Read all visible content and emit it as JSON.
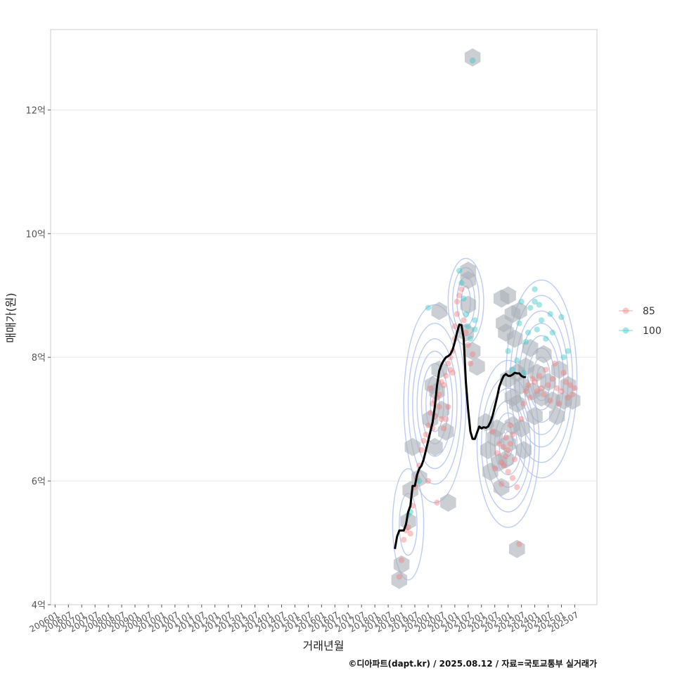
{
  "chart_data": {
    "type": "scatter",
    "xlabel": "거래년월",
    "ylabel": "매매가(원)",
    "caption": "©디아파트(dapt.kr) / 2025.08.12 / 자료=국토교통부 실거래가",
    "x_ticks": [
      "200601",
      "200607",
      "200701",
      "200707",
      "200801",
      "200807",
      "200901",
      "200907",
      "201001",
      "201007",
      "201101",
      "201107",
      "201201",
      "201207",
      "201301",
      "201307",
      "201401",
      "201407",
      "201501",
      "201507",
      "201601",
      "201607",
      "201701",
      "201707",
      "201801",
      "201807",
      "201901",
      "201907",
      "202001",
      "202007",
      "202101",
      "202107",
      "202201",
      "202207",
      "202301",
      "202307",
      "202401",
      "202407",
      "202501",
      "202507"
    ],
    "y_ticks": [
      {
        "value": 4,
        "label": "4억"
      },
      {
        "value": 6,
        "label": "6억"
      },
      {
        "value": 8,
        "label": "8억"
      },
      {
        "value": 10,
        "label": "10억"
      },
      {
        "value": 12,
        "label": "12억"
      }
    ],
    "ylim": [
      4,
      13.3
    ],
    "xlim": [
      "200511",
      "202605"
    ],
    "grid": true,
    "legend_position": "right",
    "colors": {
      "85": "#F08080",
      "100": "#3CC8C8",
      "trend": "#000000",
      "hex": "#A9AFB5",
      "contour": "#AABBEE"
    },
    "series": [
      {
        "name": "85",
        "points": [
          [
            "201812",
            4.45
          ],
          [
            "201901",
            4.72
          ],
          [
            "201902",
            5.05
          ],
          [
            "201903",
            5.2
          ],
          [
            "201904",
            5.25
          ],
          [
            "201905",
            5.15
          ],
          [
            "201906",
            5.6
          ],
          [
            "201907",
            5.9
          ],
          [
            "201908",
            6.05
          ],
          [
            "201909",
            6.25
          ],
          [
            "201910",
            6.5
          ],
          [
            "201911",
            6.65
          ],
          [
            "201912",
            6.75
          ],
          [
            "202001",
            6.0
          ],
          [
            "202001",
            6.9
          ],
          [
            "202002",
            7.1
          ],
          [
            "202002",
            7.5
          ],
          [
            "202003",
            7.25
          ],
          [
            "202003",
            6.85
          ],
          [
            "202004",
            7.3
          ],
          [
            "202004",
            7.05
          ],
          [
            "202005",
            7.35
          ],
          [
            "202005",
            5.65
          ],
          [
            "202006",
            7.4
          ],
          [
            "202006",
            7.2
          ],
          [
            "202007",
            7.0
          ],
          [
            "202007",
            7.6
          ],
          [
            "202008",
            7.55
          ],
          [
            "202008",
            6.85
          ],
          [
            "202009",
            7.7
          ],
          [
            "202009",
            7.0
          ],
          [
            "202010",
            7.9
          ],
          [
            "202010",
            7.2
          ],
          [
            "202011",
            7.8
          ],
          [
            "202011",
            8.0
          ],
          [
            "202012",
            8.1
          ],
          [
            "202012",
            7.75
          ],
          [
            "202101",
            8.3
          ],
          [
            "202101",
            8.5
          ],
          [
            "202102",
            8.7
          ],
          [
            "202102",
            8.9
          ],
          [
            "202103",
            9.0
          ],
          [
            "202104",
            9.1
          ],
          [
            "202105",
            8.6
          ],
          [
            "202106",
            8.4
          ],
          [
            "202107",
            8.2
          ],
          [
            "202108",
            7.9
          ],
          [
            "202109",
            8.05
          ],
          [
            "202206",
            6.8
          ],
          [
            "202207",
            6.2
          ],
          [
            "202208",
            6.45
          ],
          [
            "202209",
            6.6
          ],
          [
            "202210",
            6.3
          ],
          [
            "202210",
            5.95
          ],
          [
            "202211",
            6.55
          ],
          [
            "202211",
            6.25
          ],
          [
            "202212",
            6.7
          ],
          [
            "202212",
            6.4
          ],
          [
            "202301",
            6.5
          ],
          [
            "202301",
            6.15
          ],
          [
            "202302",
            6.9
          ],
          [
            "202302",
            6.6
          ],
          [
            "202303",
            6.05
          ],
          [
            "202303",
            6.75
          ],
          [
            "202304",
            6.35
          ],
          [
            "202305",
            5.9
          ],
          [
            "202306",
            4.98
          ],
          [
            "202307",
            7.0
          ],
          [
            "202308",
            7.25
          ],
          [
            "202309",
            7.45
          ],
          [
            "202310",
            7.55
          ],
          [
            "202311",
            7.35
          ],
          [
            "202312",
            7.65
          ],
          [
            "202401",
            7.6
          ],
          [
            "202402",
            7.45
          ],
          [
            "202403",
            7.7
          ],
          [
            "202404",
            7.5
          ],
          [
            "202405",
            7.4
          ],
          [
            "202406",
            7.8
          ],
          [
            "202407",
            7.55
          ],
          [
            "202408",
            7.3
          ],
          [
            "202409",
            7.65
          ],
          [
            "202410",
            7.9
          ],
          [
            "202411",
            7.5
          ],
          [
            "202412",
            7.25
          ],
          [
            "202501",
            7.45
          ],
          [
            "202502",
            7.75
          ],
          [
            "202503",
            7.6
          ],
          [
            "202504",
            7.35
          ],
          [
            "202505",
            7.55
          ],
          [
            "202506",
            7.4
          ],
          [
            "202507",
            7.5
          ]
        ]
      },
      {
        "name": "100",
        "points": [
          [
            "201904",
            5.45
          ],
          [
            "201905",
            5.5
          ],
          [
            "201909",
            6.0
          ],
          [
            "202001",
            8.8
          ],
          [
            "202103",
            9.4
          ],
          [
            "202104",
            9.2
          ],
          [
            "202105",
            8.95
          ],
          [
            "202106",
            8.7
          ],
          [
            "202107",
            8.5
          ],
          [
            "202108",
            8.3
          ],
          [
            "202109",
            12.8
          ],
          [
            "202110",
            8.6
          ],
          [
            "202110",
            8.45
          ],
          [
            "202301",
            8.1
          ],
          [
            "202303",
            7.8
          ],
          [
            "202305",
            7.95
          ],
          [
            "202306",
            8.55
          ],
          [
            "202307",
            8.9
          ],
          [
            "202308",
            7.75
          ],
          [
            "202309",
            8.25
          ],
          [
            "202310",
            8.4
          ],
          [
            "202311",
            8.8
          ],
          [
            "202401",
            9.1
          ],
          [
            "202401",
            8.9
          ],
          [
            "202402",
            8.45
          ],
          [
            "202403",
            8.85
          ],
          [
            "202404",
            8.6
          ],
          [
            "202406",
            8.3
          ],
          [
            "202408",
            8.7
          ],
          [
            "202409",
            8.4
          ],
          [
            "202501",
            8.65
          ],
          [
            "202502",
            8.0
          ],
          [
            "202504",
            8.1
          ]
        ]
      }
    ],
    "trend": [
      [
        "201810",
        4.9
      ],
      [
        "201811",
        5.1
      ],
      [
        "201812",
        5.2
      ],
      [
        "201901",
        5.2
      ],
      [
        "201902",
        5.2
      ],
      [
        "201903",
        5.3
      ],
      [
        "201904",
        5.5
      ],
      [
        "201905",
        5.6
      ],
      [
        "201906",
        5.92
      ],
      [
        "201907",
        5.92
      ],
      [
        "201908",
        6.1
      ],
      [
        "201909",
        6.2
      ],
      [
        "201910",
        6.25
      ],
      [
        "201911",
        6.35
      ],
      [
        "201912",
        6.5
      ],
      [
        "202001",
        6.65
      ],
      [
        "202002",
        6.8
      ],
      [
        "202003",
        6.95
      ],
      [
        "202004",
        7.2
      ],
      [
        "202005",
        7.55
      ],
      [
        "202006",
        7.78
      ],
      [
        "202007",
        7.88
      ],
      [
        "202008",
        7.95
      ],
      [
        "202009",
        8.0
      ],
      [
        "202010",
        8.02
      ],
      [
        "202011",
        8.05
      ],
      [
        "202012",
        8.12
      ],
      [
        "202101",
        8.25
      ],
      [
        "202102",
        8.4
      ],
      [
        "202103",
        8.53
      ],
      [
        "202104",
        8.52
      ],
      [
        "202105",
        8.3
      ],
      [
        "202106",
        7.6
      ],
      [
        "202107",
        7.15
      ],
      [
        "202108",
        6.8
      ],
      [
        "202109",
        6.68
      ],
      [
        "202110",
        6.68
      ],
      [
        "202111",
        6.78
      ],
      [
        "202112",
        6.88
      ],
      [
        "202201",
        6.85
      ],
      [
        "202202",
        6.87
      ],
      [
        "202203",
        6.86
      ],
      [
        "202204",
        6.88
      ],
      [
        "202205",
        6.95
      ],
      [
        "202206",
        7.05
      ],
      [
        "202207",
        7.2
      ],
      [
        "202208",
        7.35
      ],
      [
        "202209",
        7.52
      ],
      [
        "202210",
        7.62
      ],
      [
        "202211",
        7.7
      ],
      [
        "202212",
        7.73
      ],
      [
        "202301",
        7.7
      ],
      [
        "202302",
        7.7
      ],
      [
        "202303",
        7.72
      ],
      [
        "202304",
        7.75
      ],
      [
        "202305",
        7.74
      ],
      [
        "202306",
        7.74
      ],
      [
        "202307",
        7.7
      ],
      [
        "202308",
        7.68
      ],
      [
        "202309",
        7.68
      ]
    ],
    "hexbins": [
      [
        "201812",
        4.4
      ],
      [
        "201901",
        4.65
      ],
      [
        "201904",
        5.35
      ],
      [
        "201905",
        5.85
      ],
      [
        "201906",
        6.55
      ],
      [
        "201909",
        6.05
      ],
      [
        "202002",
        7.0
      ],
      [
        "202003",
        7.55
      ],
      [
        "202004",
        6.55
      ],
      [
        "202005",
        7.45
      ],
      [
        "202006",
        7.8
      ],
      [
        "202007",
        7.15
      ],
      [
        "202009",
        6.8
      ],
      [
        "202010",
        5.65
      ],
      [
        "202006",
        8.75
      ],
      [
        "202107",
        9.4
      ],
      [
        "202107",
        9.25
      ],
      [
        "202107",
        8.85
      ],
      [
        "202109",
        12.85
      ],
      [
        "202106",
        8.4
      ],
      [
        "202210",
        8.95
      ],
      [
        "202211",
        8.55
      ],
      [
        "202212",
        8.4
      ],
      [
        "202301",
        9.0
      ],
      [
        "202303",
        8.7
      ],
      [
        "202304",
        8.3
      ],
      [
        "202306",
        8.75
      ],
      [
        "202305",
        7.75
      ],
      [
        "202301",
        7.65
      ],
      [
        "202303",
        7.35
      ],
      [
        "202305",
        7.25
      ],
      [
        "202307",
        7.55
      ],
      [
        "202309",
        7.85
      ],
      [
        "202311",
        8.15
      ],
      [
        "202312",
        7.45
      ],
      [
        "202401",
        7.05
      ],
      [
        "202402",
        7.75
      ],
      [
        "202404",
        7.35
      ],
      [
        "202405",
        8.05
      ],
      [
        "202407",
        7.6
      ],
      [
        "202409",
        7.3
      ],
      [
        "202411",
        7.05
      ],
      [
        "202412",
        7.8
      ],
      [
        "202502",
        7.3
      ],
      [
        "202504",
        7.55
      ],
      [
        "202506",
        7.3
      ],
      [
        "202109",
        8.1
      ],
      [
        "202111",
        7.85
      ],
      [
        "202203",
        6.95
      ],
      [
        "202204",
        6.5
      ],
      [
        "202205",
        6.15
      ],
      [
        "202207",
        6.7
      ],
      [
        "202208",
        6.85
      ],
      [
        "202209",
        6.3
      ],
      [
        "202210",
        5.9
      ],
      [
        "202212",
        6.35
      ],
      [
        "202301",
        6.6
      ],
      [
        "202303",
        6.9
      ],
      [
        "202305",
        4.9
      ],
      [
        "202307",
        6.85
      ],
      [
        "202308",
        6.5
      ]
    ],
    "contours": [
      {
        "center": [
          "202004",
          7.25
        ],
        "rx": [
          2,
          4,
          6,
          8,
          10,
          12,
          14
        ],
        "ry": [
          0.25,
          0.45,
          0.65,
          0.85,
          1.05,
          1.3,
          1.6
        ]
      },
      {
        "center": [
          "202106",
          8.9
        ],
        "rx": [
          2,
          4,
          6,
          8
        ],
        "ry": [
          0.25,
          0.4,
          0.55,
          0.7
        ]
      },
      {
        "center": [
          "202301",
          6.6
        ],
        "rx": [
          2,
          4,
          6,
          8,
          10,
          12,
          14
        ],
        "ry": [
          0.2,
          0.35,
          0.5,
          0.7,
          0.9,
          1.1,
          1.35
        ]
      },
      {
        "center": [
          "202404",
          7.65
        ],
        "rx": [
          2,
          4,
          6,
          8,
          10,
          12,
          14,
          16
        ],
        "ry": [
          0.2,
          0.35,
          0.5,
          0.7,
          0.9,
          1.1,
          1.35,
          1.6
        ]
      },
      {
        "center": [
          "201904",
          5.3
        ],
        "rx": [
          4,
          7
        ],
        "ry": [
          0.5,
          0.9
        ]
      }
    ]
  }
}
